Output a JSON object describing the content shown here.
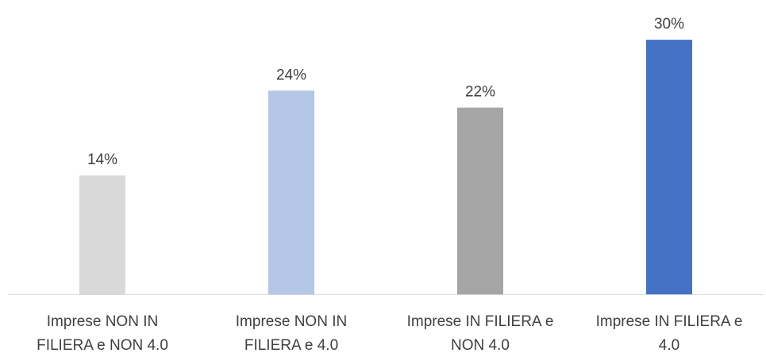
{
  "chart_data": {
    "type": "bar",
    "categories": [
      [
        "Imprese NON IN",
        "FILIERA e NON 4.0"
      ],
      [
        "Imprese NON IN",
        "FILIERA e 4.0"
      ],
      [
        "Imprese IN FILIERA e",
        "NON 4.0"
      ],
      [
        "Imprese IN FILIERA e",
        "4.0"
      ]
    ],
    "values": [
      14,
      24,
      22,
      30
    ],
    "data_labels": [
      "14%",
      "24%",
      "22%",
      "30%"
    ],
    "colors": [
      "#d9d9d9",
      "#b4c7e7",
      "#a5a5a5",
      "#4472c4"
    ],
    "ylim": [
      0,
      33
    ],
    "grid": false,
    "legend": "none"
  }
}
